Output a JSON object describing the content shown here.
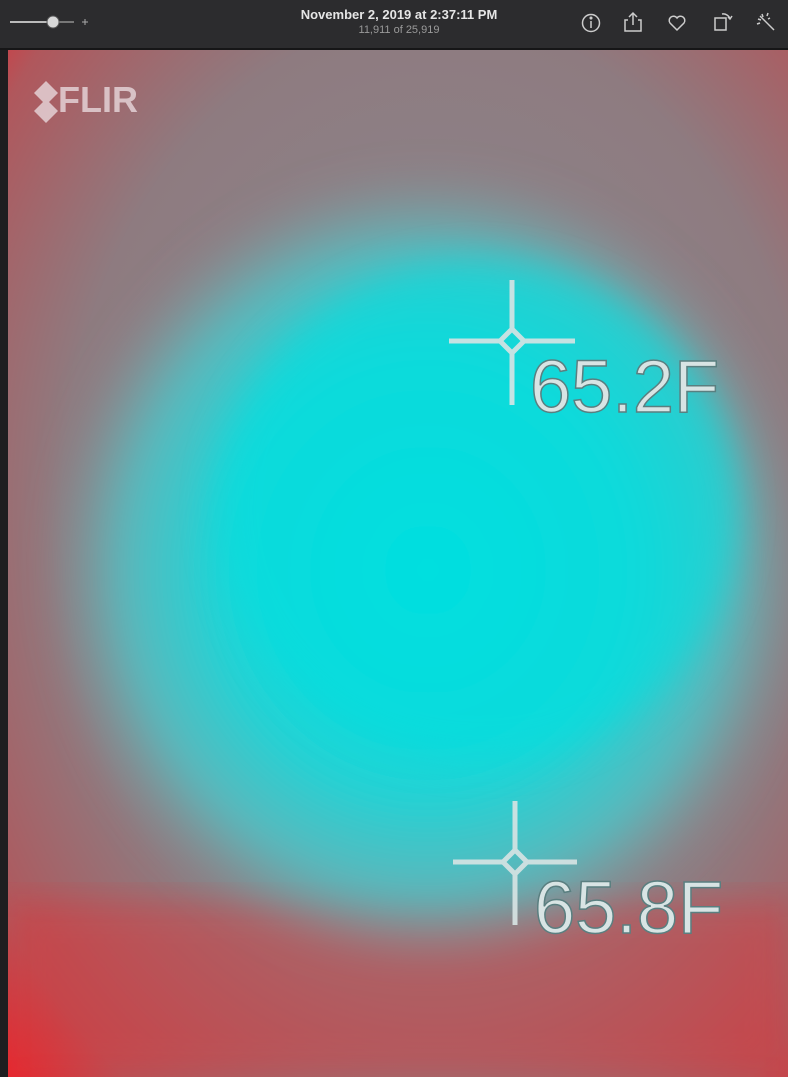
{
  "toolbar": {
    "title": "November 2, 2019 at 2:37:11 PM",
    "subtitle": "11,911 of 25,919"
  },
  "image": {
    "logo": "FLIR",
    "readings": [
      "65.2F",
      "65.8F"
    ]
  }
}
